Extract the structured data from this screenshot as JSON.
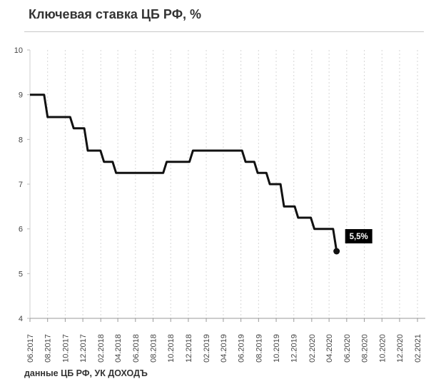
{
  "title": "Ключевая ставка ЦБ РФ, %",
  "source": "данные ЦБ РФ, УК ДОХОДЪ",
  "chart_data": {
    "type": "line",
    "title": "Ключевая ставка ЦБ РФ, %",
    "xlabel": "",
    "ylabel": "",
    "ylim": [
      4,
      10
    ],
    "yticks": [
      4,
      5,
      6,
      7,
      8,
      9,
      10
    ],
    "xlim": [
      "2017-06-01",
      "2021-02-28"
    ],
    "xticks": [
      "06.2017",
      "08.2017",
      "10.2017",
      "12.2017",
      "02.2018",
      "04.2018",
      "06.2018",
      "08.2018",
      "10.2018",
      "12.2018",
      "02.2019",
      "04.2019",
      "06.2019",
      "08.2019",
      "10.2019",
      "12.2019",
      "02.2020",
      "04.2020",
      "06.2020",
      "08.2020",
      "10.2020",
      "12.2020",
      "02.2021"
    ],
    "grid": "vertical dashed",
    "line_color": "#111111",
    "series": [
      {
        "x": [
          "2017-06-01",
          "2017-07-03",
          "2017-08-01",
          "2017-09-18",
          "2017-10-30",
          "2017-12-18",
          "2018-02-12",
          "2018-03-26",
          "2018-09-17",
          "2018-12-17",
          "2019-06-17",
          "2019-07-29",
          "2019-09-09",
          "2019-10-28",
          "2019-12-16",
          "2020-02-10",
          "2020-04-27"
        ],
        "y": [
          9.0,
          9.0,
          8.5,
          8.5,
          8.25,
          7.75,
          7.5,
          7.25,
          7.5,
          7.75,
          7.5,
          7.25,
          7.0,
          6.5,
          6.25,
          6.0,
          5.5
        ]
      }
    ],
    "annotations": [
      {
        "x": "2020-04-27",
        "y": 5.5,
        "text": "5,5%",
        "style": "black box, white text"
      }
    ]
  }
}
